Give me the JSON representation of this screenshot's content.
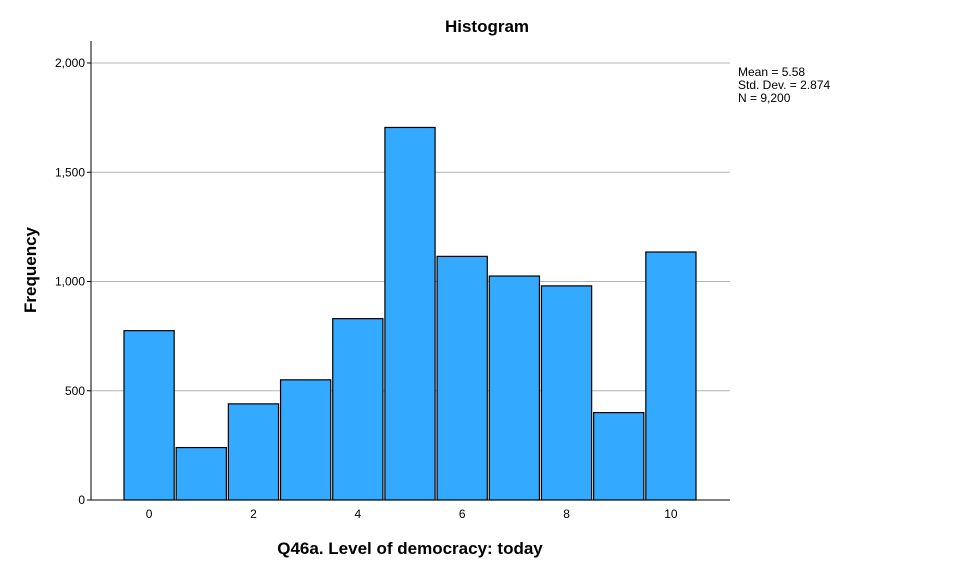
{
  "chart_data": {
    "type": "bar",
    "title": "Histogram",
    "xlabel": "Q46a. Level of democracy: today",
    "ylabel": "Frequency",
    "categories": [
      0,
      1,
      2,
      3,
      4,
      5,
      6,
      7,
      8,
      9,
      10
    ],
    "values": [
      775,
      240,
      440,
      550,
      830,
      1705,
      1115,
      1025,
      980,
      400,
      1135
    ],
    "xlim": [
      -0.5,
      10.5
    ],
    "ylim": [
      0,
      2000
    ],
    "x_ticks": [
      0,
      2,
      4,
      6,
      8,
      10
    ],
    "x_tick_labels": [
      "0",
      "2",
      "4",
      "6",
      "8",
      "10"
    ],
    "y_ticks": [
      0,
      500,
      1000,
      1500,
      2000
    ],
    "y_tick_labels": [
      "0",
      "500",
      "1,000",
      "1,500",
      "2,000"
    ],
    "grid": true,
    "bar_color": "#33aaff",
    "stats": {
      "mean": "Mean = 5.58",
      "std_dev": "Std. Dev. = 2.874",
      "n": "N = 9,200"
    },
    "legend_position": "top-right"
  }
}
